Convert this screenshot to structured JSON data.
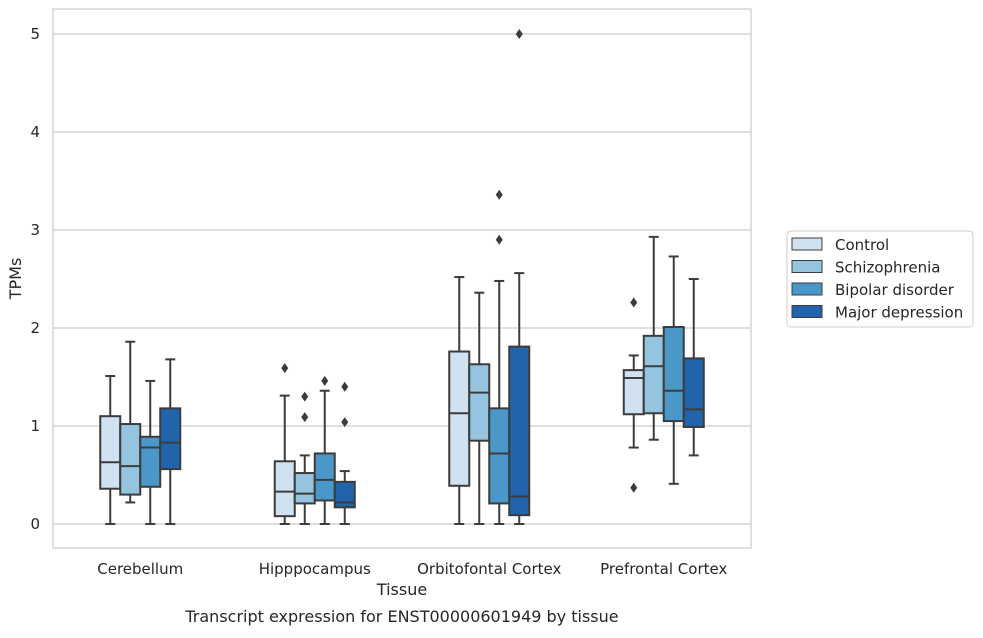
{
  "chart_data": {
    "type": "box",
    "title": "Transcript expression for ENST00000601949 by tissue",
    "xlabel": "Tissue",
    "ylabel": "TPMs",
    "ylim": [
      -0.24,
      5.24
    ],
    "yticks": [
      0,
      1,
      2,
      3,
      4,
      5
    ],
    "grid": true,
    "legend_position": "right",
    "categories": [
      "Cerebellum",
      "Hipppocampus",
      "Orbitofontal Cortex",
      "Prefrontal Cortex"
    ],
    "series": [
      {
        "name": "Control",
        "color": "#d0e1f2",
        "boxes": [
          {
            "whisker_low": 0.0,
            "q1": 0.36,
            "median": 0.63,
            "q3": 1.1,
            "whisker_high": 1.51,
            "outliers": []
          },
          {
            "whisker_low": 0.0,
            "q1": 0.08,
            "median": 0.33,
            "q3": 0.64,
            "whisker_high": 1.31,
            "outliers": [
              1.59
            ]
          },
          {
            "whisker_low": 0.0,
            "q1": 0.39,
            "median": 1.13,
            "q3": 1.76,
            "whisker_high": 2.52,
            "outliers": []
          },
          {
            "whisker_low": 0.78,
            "q1": 1.12,
            "median": 1.49,
            "q3": 1.57,
            "whisker_high": 1.72,
            "outliers": [
              2.26,
              0.37
            ]
          }
        ]
      },
      {
        "name": "Schizophrenia",
        "color": "#94c4df",
        "boxes": [
          {
            "whisker_low": 0.22,
            "q1": 0.3,
            "median": 0.59,
            "q3": 1.02,
            "whisker_high": 1.86,
            "outliers": []
          },
          {
            "whisker_low": 0.0,
            "q1": 0.21,
            "median": 0.31,
            "q3": 0.52,
            "whisker_high": 0.7,
            "outliers": [
              1.3,
              1.09
            ]
          },
          {
            "whisker_low": 0.0,
            "q1": 0.85,
            "median": 1.34,
            "q3": 1.63,
            "whisker_high": 2.36,
            "outliers": []
          },
          {
            "whisker_low": 0.86,
            "q1": 1.13,
            "median": 1.61,
            "q3": 1.92,
            "whisker_high": 2.93,
            "outliers": []
          }
        ]
      },
      {
        "name": "Bipolar disorder",
        "color": "#4a98c9",
        "boxes": [
          {
            "whisker_low": 0.0,
            "q1": 0.38,
            "median": 0.78,
            "q3": 0.89,
            "whisker_high": 1.46,
            "outliers": []
          },
          {
            "whisker_low": 0.0,
            "q1": 0.24,
            "median": 0.45,
            "q3": 0.72,
            "whisker_high": 1.36,
            "outliers": [
              1.46
            ]
          },
          {
            "whisker_low": 0.0,
            "q1": 0.21,
            "median": 0.72,
            "q3": 1.18,
            "whisker_high": 2.48,
            "outliers": [
              3.36,
              2.9
            ]
          },
          {
            "whisker_low": 0.41,
            "q1": 1.05,
            "median": 1.36,
            "q3": 2.01,
            "whisker_high": 2.73,
            "outliers": []
          }
        ]
      },
      {
        "name": "Major depression",
        "color": "#2164ab",
        "boxes": [
          {
            "whisker_low": 0.0,
            "q1": 0.56,
            "median": 0.83,
            "q3": 1.18,
            "whisker_high": 1.68,
            "outliers": []
          },
          {
            "whisker_low": 0.0,
            "q1": 0.17,
            "median": 0.22,
            "q3": 0.43,
            "whisker_high": 0.54,
            "outliers": [
              1.4,
              1.04
            ]
          },
          {
            "whisker_low": 0.0,
            "q1": 0.09,
            "median": 0.28,
            "q3": 1.81,
            "whisker_high": 2.56,
            "outliers": [
              5.0
            ]
          },
          {
            "whisker_low": 0.7,
            "q1": 0.99,
            "median": 1.17,
            "q3": 1.69,
            "whisker_high": 2.5,
            "outliers": []
          }
        ]
      }
    ]
  }
}
